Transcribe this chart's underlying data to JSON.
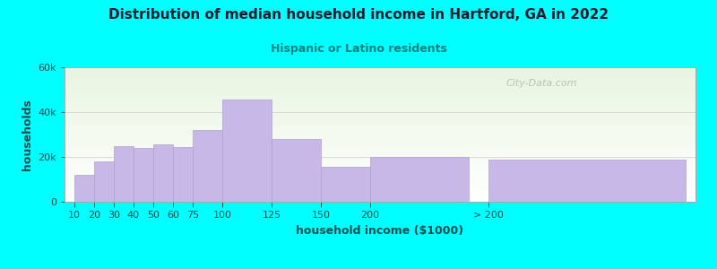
{
  "title": "Distribution of median household income in Hartford, GA in 2022",
  "subtitle": "Hispanic or Latino residents",
  "xlabel": "household income ($1000)",
  "ylabel": "households",
  "background_color": "#00FFFF",
  "plot_bg_top": "#e8f5e0",
  "plot_bg_bottom": "#ffffff",
  "bar_color": "#c8b8e8",
  "bar_edge_color": "#b0a0d0",
  "title_color": "#1a1a2e",
  "subtitle_color": "#008080",
  "axis_label_color": "#005050",
  "tick_label_color": "#005050",
  "watermark": "City-Data.com",
  "categories": [
    "10",
    "20",
    "30",
    "40",
    "50",
    "60",
    "75",
    "100",
    "125",
    "150",
    "200",
    "> 200"
  ],
  "values": [
    12000,
    18000,
    25000,
    24000,
    25500,
    24500,
    32000,
    45500,
    28000,
    15500,
    20000,
    19000
  ],
  "bar_widths": [
    10,
    10,
    10,
    10,
    10,
    10,
    15,
    25,
    25,
    25,
    50,
    100
  ],
  "bar_lefts": [
    5,
    15,
    25,
    35,
    45,
    55,
    65,
    80,
    105,
    130,
    155,
    215
  ],
  "xlim": [
    0,
    320
  ],
  "ylim": [
    0,
    60000
  ],
  "yticks": [
    0,
    20000,
    40000,
    60000
  ],
  "ytick_labels": [
    "0",
    "20k",
    "40k",
    "60k"
  ],
  "figsize": [
    8.0,
    3.0
  ],
  "dpi": 100
}
